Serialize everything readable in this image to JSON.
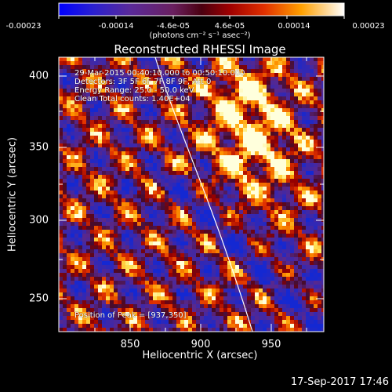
{
  "colorbar": {
    "ticks": [
      "-0.00023",
      "-0.00014",
      "-4.6e-05",
      "4.6e-05",
      "0.00014",
      "0.00023"
    ],
    "units": "(photons cm⁻² s⁻¹ asec⁻²)"
  },
  "title": "Reconstructed RHESSI Image",
  "annotations": {
    "time_range": "29-Mar-2015 00:40:10.000 to 00:50:10.000",
    "detectors": "Detectors: 3F 5F 6F 7F 8F 9F, Att 0",
    "energy": "Energy Range: 25.0 - 50.0 keV",
    "method": "Clean     Total counts: 1.40E+04",
    "peak": "Position of Peak = [937,350]"
  },
  "axes": {
    "xlabel": "Heliocentric X (arcsec)",
    "ylabel": "Heliocentric Y (arcsec)",
    "xticks": [
      "850",
      "900",
      "950"
    ],
    "yticks": [
      "250",
      "300",
      "350",
      "400"
    ],
    "xrange": [
      802,
      992
    ],
    "yrange": [
      218,
      412
    ]
  },
  "footer": "17-Sep-2017 17:46",
  "colors": {
    "background": "#000000",
    "limb_line": "#ffffff"
  }
}
